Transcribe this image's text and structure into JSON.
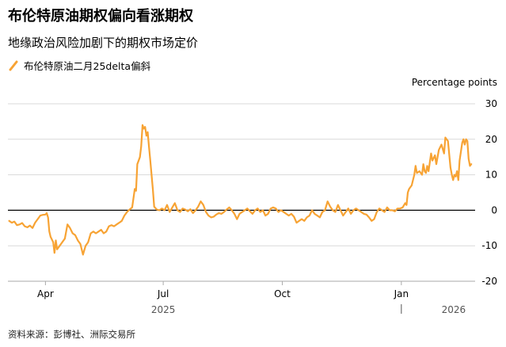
{
  "title": "布伦特原油期权偏向看涨期权",
  "subtitle": "地缘政治风险加剧下的期权市场定价",
  "source": "资料来源：彭博社、洲际交易所",
  "colors": {
    "series": "#f7a334",
    "grid": "#d9d9d9",
    "zero": "#000000",
    "axis": "#aaaaaa"
  },
  "chart_data": {
    "type": "line",
    "unit_label": "Percentage points",
    "ylim": [
      -20,
      30
    ],
    "yticks": [
      30,
      20,
      10,
      0,
      -10,
      -20
    ],
    "xlim": [
      "2025-03-03",
      "2026-02-27"
    ],
    "xticks": [
      {
        "date": "2025-04-01",
        "label": "Apr"
      },
      {
        "date": "2025-07-01",
        "label": "Jul"
      },
      {
        "date": "2025-10-01",
        "label": "Oct"
      },
      {
        "date": "2026-01-01",
        "label": "Jan"
      }
    ],
    "year_labels": [
      {
        "date": "2025-07-01",
        "label": "2025"
      },
      {
        "date": "2026-01-20",
        "label": "2026"
      }
    ],
    "grid": true,
    "legend_position": "top-left",
    "series": [
      {
        "name": "布伦特原油二月25delta偏斜",
        "points": [
          [
            "2025-03-04",
            -3.0
          ],
          [
            "2025-03-06",
            -3.5
          ],
          [
            "2025-03-08",
            -3.2
          ],
          [
            "2025-03-10",
            -4.2
          ],
          [
            "2025-03-12",
            -4.0
          ],
          [
            "2025-03-14",
            -3.6
          ],
          [
            "2025-03-16",
            -4.5
          ],
          [
            "2025-03-18",
            -4.8
          ],
          [
            "2025-03-20",
            -4.3
          ],
          [
            "2025-03-22",
            -5.0
          ],
          [
            "2025-03-24",
            -3.5
          ],
          [
            "2025-03-26",
            -2.5
          ],
          [
            "2025-03-28",
            -1.5
          ],
          [
            "2025-03-30",
            -1.3
          ],
          [
            "2025-04-01",
            -1.2
          ],
          [
            "2025-04-02",
            -0.8
          ],
          [
            "2025-04-03",
            -2.0
          ],
          [
            "2025-04-04",
            -6.0
          ],
          [
            "2025-04-05",
            -7.5
          ],
          [
            "2025-04-07",
            -9.0
          ],
          [
            "2025-04-08",
            -12.0
          ],
          [
            "2025-04-09",
            -8.5
          ],
          [
            "2025-04-10",
            -11.0
          ],
          [
            "2025-04-12",
            -10.0
          ],
          [
            "2025-04-14",
            -9.0
          ],
          [
            "2025-04-16",
            -8.0
          ],
          [
            "2025-04-18",
            -4.0
          ],
          [
            "2025-04-20",
            -5.0
          ],
          [
            "2025-04-22",
            -6.5
          ],
          [
            "2025-04-24",
            -7.0
          ],
          [
            "2025-04-26",
            -8.5
          ],
          [
            "2025-04-28",
            -9.5
          ],
          [
            "2025-04-30",
            -12.5
          ],
          [
            "2025-05-02",
            -10.0
          ],
          [
            "2025-05-04",
            -9.0
          ],
          [
            "2025-05-06",
            -6.5
          ],
          [
            "2025-05-08",
            -6.0
          ],
          [
            "2025-05-10",
            -6.5
          ],
          [
            "2025-05-12",
            -6.0
          ],
          [
            "2025-05-14",
            -5.5
          ],
          [
            "2025-05-16",
            -6.5
          ],
          [
            "2025-05-18",
            -6.0
          ],
          [
            "2025-05-20",
            -4.5
          ],
          [
            "2025-05-22",
            -4.2
          ],
          [
            "2025-05-24",
            -4.5
          ],
          [
            "2025-05-26",
            -4.0
          ],
          [
            "2025-05-28",
            -3.5
          ],
          [
            "2025-05-30",
            -3.0
          ],
          [
            "2025-06-01",
            -1.5
          ],
          [
            "2025-06-03",
            -0.5
          ],
          [
            "2025-06-05",
            0.2
          ],
          [
            "2025-06-07",
            0.8
          ],
          [
            "2025-06-09",
            6.0
          ],
          [
            "2025-06-10",
            5.5
          ],
          [
            "2025-06-11",
            13.0
          ],
          [
            "2025-06-12",
            14.0
          ],
          [
            "2025-06-13",
            15.0
          ],
          [
            "2025-06-14",
            18.0
          ],
          [
            "2025-06-15",
            24.0
          ],
          [
            "2025-06-16",
            23.0
          ],
          [
            "2025-06-17",
            23.5
          ],
          [
            "2025-06-18",
            21.0
          ],
          [
            "2025-06-19",
            22.0
          ],
          [
            "2025-06-20",
            18.0
          ],
          [
            "2025-06-21",
            14.0
          ],
          [
            "2025-06-23",
            6.0
          ],
          [
            "2025-06-24",
            1.0
          ],
          [
            "2025-06-26",
            0.2
          ],
          [
            "2025-06-28",
            0.0
          ],
          [
            "2025-06-30",
            0.5
          ],
          [
            "2025-07-02",
            0.0
          ],
          [
            "2025-07-04",
            1.5
          ],
          [
            "2025-07-06",
            -0.5
          ],
          [
            "2025-07-08",
            0.8
          ],
          [
            "2025-07-10",
            2.0
          ],
          [
            "2025-07-12",
            0.0
          ],
          [
            "2025-07-14",
            -0.5
          ],
          [
            "2025-07-16",
            0.5
          ],
          [
            "2025-07-18",
            0.2
          ],
          [
            "2025-07-20",
            -0.3
          ],
          [
            "2025-07-22",
            0.3
          ],
          [
            "2025-07-24",
            -0.8
          ],
          [
            "2025-07-26",
            0.0
          ],
          [
            "2025-07-28",
            1.0
          ],
          [
            "2025-07-30",
            2.5
          ],
          [
            "2025-08-01",
            1.5
          ],
          [
            "2025-08-03",
            -0.5
          ],
          [
            "2025-08-05",
            -1.5
          ],
          [
            "2025-08-07",
            -2.0
          ],
          [
            "2025-08-09",
            -1.8
          ],
          [
            "2025-08-11",
            -1.2
          ],
          [
            "2025-08-13",
            -0.8
          ],
          [
            "2025-08-15",
            -1.0
          ],
          [
            "2025-08-17",
            -0.5
          ],
          [
            "2025-08-19",
            0.2
          ],
          [
            "2025-08-21",
            0.8
          ],
          [
            "2025-08-23",
            0.0
          ],
          [
            "2025-08-25",
            -1.0
          ],
          [
            "2025-08-27",
            -2.5
          ],
          [
            "2025-08-29",
            -1.0
          ],
          [
            "2025-08-31",
            -0.5
          ],
          [
            "2025-09-02",
            0.0
          ],
          [
            "2025-09-04",
            0.5
          ],
          [
            "2025-09-06",
            -0.3
          ],
          [
            "2025-09-08",
            -1.0
          ],
          [
            "2025-09-10",
            0.0
          ],
          [
            "2025-09-12",
            0.5
          ],
          [
            "2025-09-14",
            -0.5
          ],
          [
            "2025-09-16",
            0.0
          ],
          [
            "2025-09-18",
            -1.5
          ],
          [
            "2025-09-20",
            -1.0
          ],
          [
            "2025-09-22",
            0.5
          ],
          [
            "2025-09-24",
            0.8
          ],
          [
            "2025-09-26",
            0.5
          ],
          [
            "2025-09-28",
            -0.5
          ],
          [
            "2025-09-30",
            0.0
          ],
          [
            "2025-10-02",
            -0.5
          ],
          [
            "2025-10-04",
            -1.0
          ],
          [
            "2025-10-06",
            -1.5
          ],
          [
            "2025-10-08",
            -1.0
          ],
          [
            "2025-10-10",
            -1.8
          ],
          [
            "2025-10-12",
            -3.5
          ],
          [
            "2025-10-14",
            -3.0
          ],
          [
            "2025-10-16",
            -2.5
          ],
          [
            "2025-10-18",
            -3.0
          ],
          [
            "2025-10-20",
            -2.0
          ],
          [
            "2025-10-22",
            -1.5
          ],
          [
            "2025-10-24",
            0.0
          ],
          [
            "2025-10-26",
            -1.0
          ],
          [
            "2025-10-28",
            -1.5
          ],
          [
            "2025-10-30",
            -2.0
          ],
          [
            "2025-11-01",
            -0.5
          ],
          [
            "2025-11-03",
            0.0
          ],
          [
            "2025-11-05",
            2.5
          ],
          [
            "2025-11-07",
            1.0
          ],
          [
            "2025-11-09",
            0.0
          ],
          [
            "2025-11-11",
            -0.5
          ],
          [
            "2025-11-13",
            1.5
          ],
          [
            "2025-11-15",
            0.0
          ],
          [
            "2025-11-17",
            -1.5
          ],
          [
            "2025-11-19",
            -0.5
          ],
          [
            "2025-11-21",
            0.5
          ],
          [
            "2025-11-23",
            -1.0
          ],
          [
            "2025-11-25",
            0.0
          ],
          [
            "2025-11-27",
            0.5
          ],
          [
            "2025-11-29",
            0.0
          ],
          [
            "2025-12-01",
            -0.5
          ],
          [
            "2025-12-03",
            -1.0
          ],
          [
            "2025-12-05",
            -1.2
          ],
          [
            "2025-12-07",
            -2.0
          ],
          [
            "2025-12-09",
            -3.0
          ],
          [
            "2025-12-11",
            -2.5
          ],
          [
            "2025-12-13",
            -0.5
          ],
          [
            "2025-12-15",
            0.5
          ],
          [
            "2025-12-17",
            0.0
          ],
          [
            "2025-12-19",
            -0.5
          ],
          [
            "2025-12-21",
            0.8
          ],
          [
            "2025-12-23",
            0.0
          ],
          [
            "2025-12-25",
            0.0
          ],
          [
            "2025-12-27",
            -0.3
          ],
          [
            "2025-12-29",
            0.5
          ],
          [
            "2025-12-31",
            0.5
          ],
          [
            "2026-01-02",
            0.8
          ],
          [
            "2026-01-04",
            2.0
          ],
          [
            "2026-01-05",
            1.5
          ],
          [
            "2026-01-06",
            5.0
          ],
          [
            "2026-01-07",
            6.0
          ],
          [
            "2026-01-09",
            7.0
          ],
          [
            "2026-01-11",
            10.0
          ],
          [
            "2026-01-12",
            12.5
          ],
          [
            "2026-01-13",
            10.5
          ],
          [
            "2026-01-15",
            11.0
          ],
          [
            "2026-01-17",
            10.0
          ],
          [
            "2026-01-18",
            13.0
          ],
          [
            "2026-01-19",
            11.0
          ],
          [
            "2026-01-20",
            10.5
          ],
          [
            "2026-01-21",
            12.5
          ],
          [
            "2026-01-22",
            11.0
          ],
          [
            "2026-01-24",
            16.0
          ],
          [
            "2026-01-25",
            14.0
          ],
          [
            "2026-01-27",
            15.5
          ],
          [
            "2026-01-28",
            13.0
          ],
          [
            "2026-01-30",
            17.0
          ],
          [
            "2026-02-01",
            18.5
          ],
          [
            "2026-02-03",
            16.0
          ],
          [
            "2026-02-04",
            20.5
          ],
          [
            "2026-02-05",
            20.0
          ],
          [
            "2026-02-06",
            19.5
          ],
          [
            "2026-02-08",
            12.0
          ],
          [
            "2026-02-09",
            10.0
          ],
          [
            "2026-02-10",
            8.5
          ],
          [
            "2026-02-11",
            10.0
          ],
          [
            "2026-02-12",
            9.5
          ],
          [
            "2026-02-13",
            11.0
          ],
          [
            "2026-02-14",
            8.5
          ],
          [
            "2026-02-15",
            14.0
          ],
          [
            "2026-02-17",
            19.0
          ],
          [
            "2026-02-18",
            20.0
          ],
          [
            "2026-02-19",
            18.5
          ],
          [
            "2026-02-20",
            20.0
          ],
          [
            "2026-02-21",
            19.5
          ],
          [
            "2026-02-22",
            14.5
          ],
          [
            "2026-02-23",
            12.5
          ],
          [
            "2026-02-24",
            13.0
          ]
        ]
      }
    ]
  }
}
